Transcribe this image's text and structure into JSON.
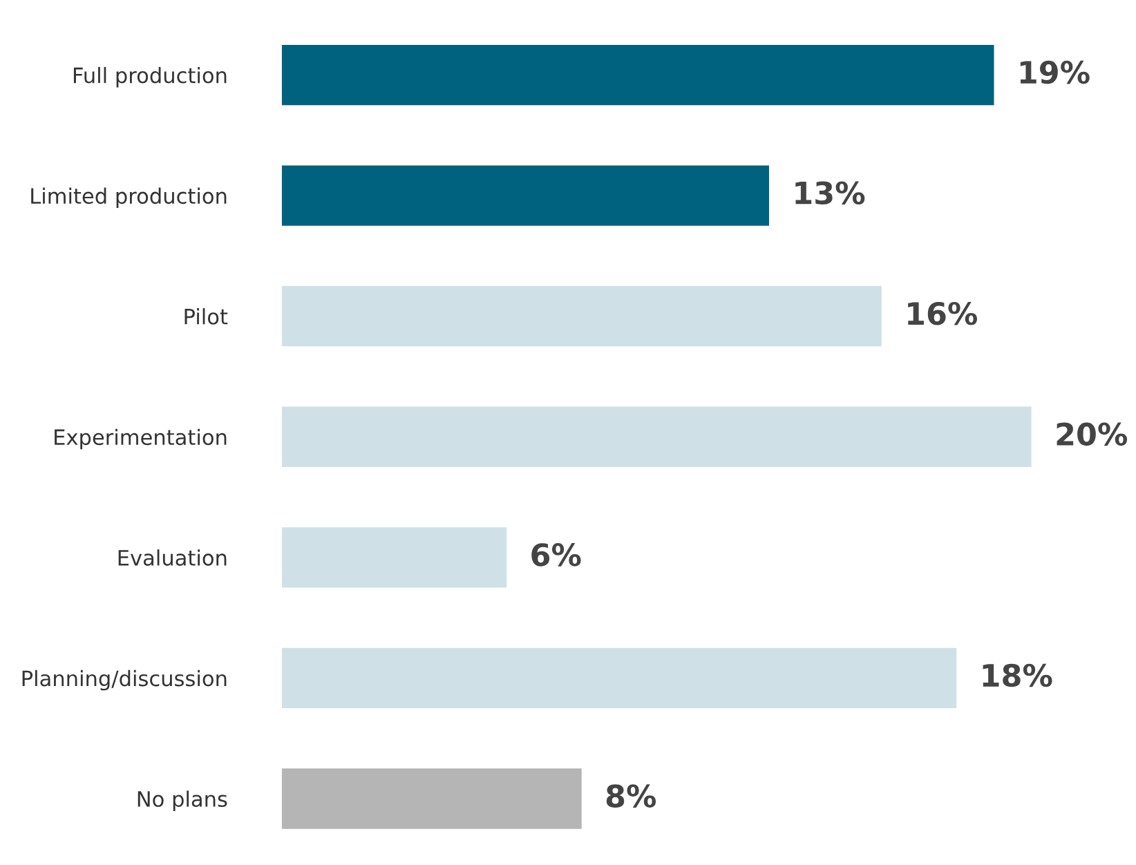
{
  "chart_data": {
    "type": "bar",
    "orientation": "horizontal",
    "categories": [
      "Full production",
      "Limited production",
      "Pilot",
      "Experimentation",
      "Evaluation",
      "Planning/discussion",
      "No plans"
    ],
    "values": [
      19,
      13,
      16,
      20,
      6,
      18,
      8
    ],
    "colors": [
      "#00627f",
      "#00627f",
      "#cfe1e6",
      "#cfe1e6",
      "#cfe1e6",
      "#cfe1e6",
      "#b5b5b5"
    ],
    "value_labels": [
      "19%",
      "13%",
      "16%",
      "20%",
      "6%",
      "18%",
      "8%"
    ],
    "grid": false,
    "legend": false
  }
}
